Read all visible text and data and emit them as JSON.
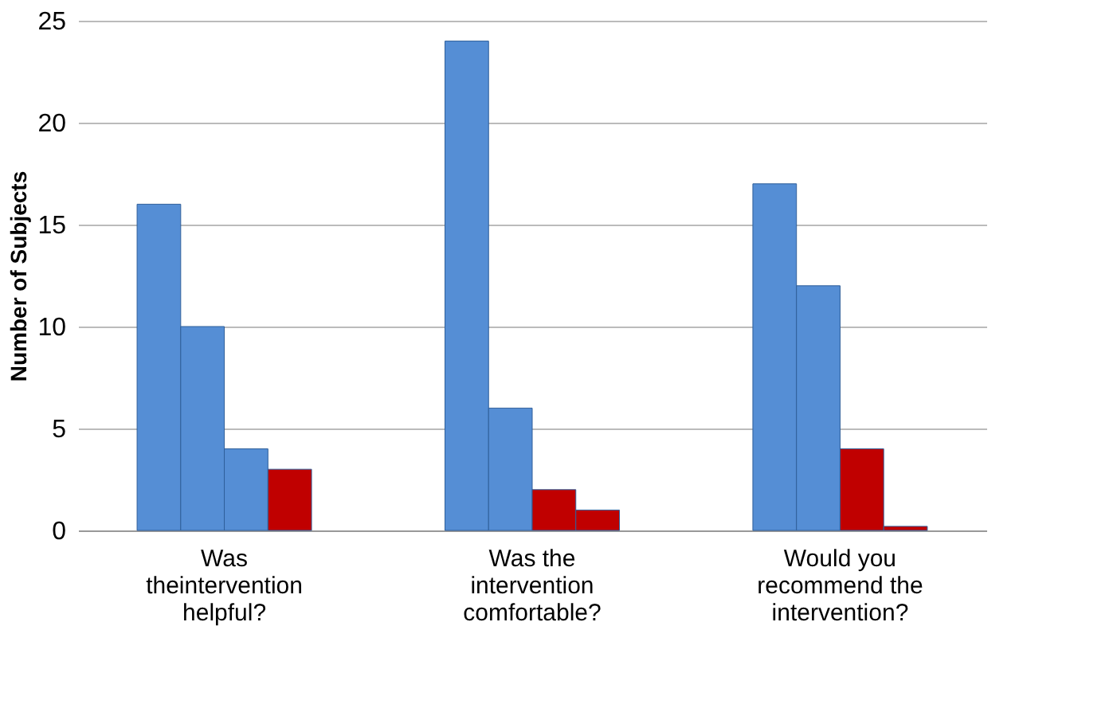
{
  "chart_data": {
    "type": "bar",
    "ylabel": "Number of Subjects",
    "categories": [
      "Was theintervention helpful?",
      "Was the intervention comfortable?",
      "Would you recommend the intervention?"
    ],
    "series": [
      {
        "colors": [
          "#558ed5",
          "#558ed5",
          "#558ed5"
        ],
        "values": [
          16,
          24,
          17
        ]
      },
      {
        "colors": [
          "#558ed5",
          "#558ed5",
          "#558ed5"
        ],
        "values": [
          10,
          6,
          12
        ]
      },
      {
        "colors": [
          "#558ed5",
          "#c00000",
          "#c00000"
        ],
        "values": [
          4,
          2,
          4
        ]
      },
      {
        "colors": [
          "#c00000",
          "#c00000",
          "#c00000"
        ],
        "values": [
          3,
          1,
          0.2
        ]
      }
    ],
    "ylim": [
      0,
      25
    ],
    "yticks": [
      0,
      5,
      10,
      15,
      20,
      25
    ],
    "grid": "y"
  }
}
